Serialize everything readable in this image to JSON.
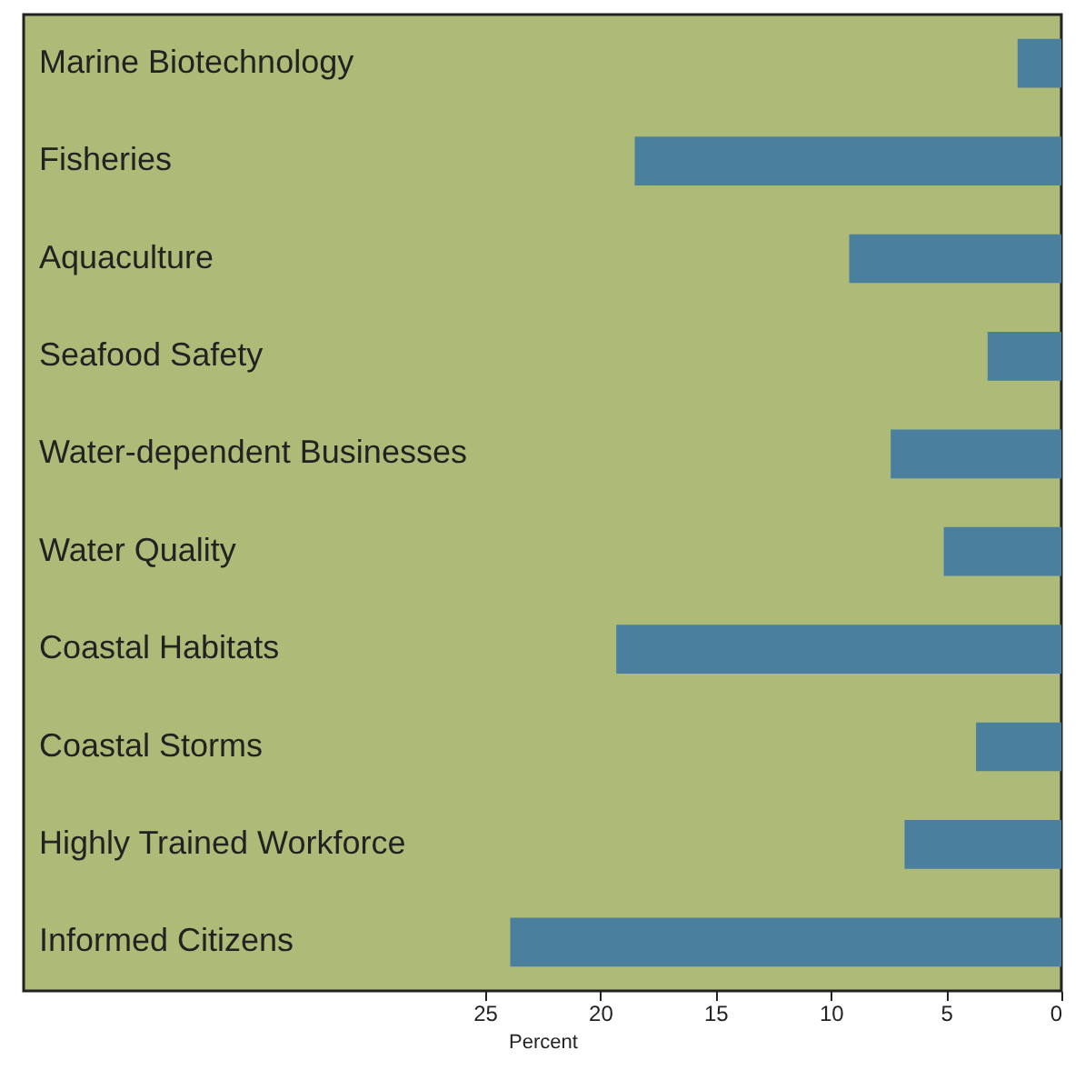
{
  "chart_data": {
    "type": "bar",
    "orientation": "horizontal",
    "xlabel": "Percent",
    "categories": [
      "Marine Biotechnology",
      "Fisheries",
      "Aquaculture",
      "Seafood Safety",
      "Water-dependent Businesses",
      "Water Quality",
      "Coastal Habitats",
      "Coastal Storms",
      "Highly Trained Workforce",
      "Informed Citizens"
    ],
    "values": [
      1.9,
      18.5,
      9.2,
      3.2,
      7.4,
      5.1,
      19.3,
      3.7,
      6.8,
      23.9
    ],
    "color": "#4a7f9e",
    "xlim": [
      45,
      0
    ],
    "xticks": [
      25,
      20,
      15,
      10,
      5,
      0
    ],
    "grid": false
  }
}
